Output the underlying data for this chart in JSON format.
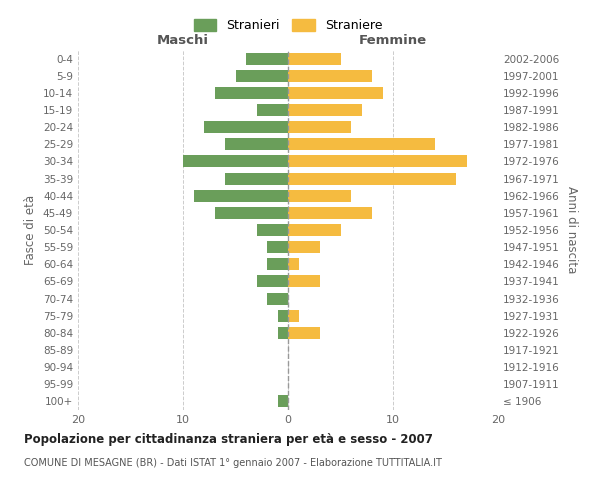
{
  "age_groups": [
    "100+",
    "95-99",
    "90-94",
    "85-89",
    "80-84",
    "75-79",
    "70-74",
    "65-69",
    "60-64",
    "55-59",
    "50-54",
    "45-49",
    "40-44",
    "35-39",
    "30-34",
    "25-29",
    "20-24",
    "15-19",
    "10-14",
    "5-9",
    "0-4"
  ],
  "birth_years": [
    "≤ 1906",
    "1907-1911",
    "1912-1916",
    "1917-1921",
    "1922-1926",
    "1927-1931",
    "1932-1936",
    "1937-1941",
    "1942-1946",
    "1947-1951",
    "1952-1956",
    "1957-1961",
    "1962-1966",
    "1967-1971",
    "1972-1976",
    "1977-1981",
    "1982-1986",
    "1987-1991",
    "1992-1996",
    "1997-2001",
    "2002-2006"
  ],
  "maschi": [
    1,
    0,
    0,
    0,
    1,
    1,
    2,
    3,
    2,
    2,
    3,
    7,
    9,
    6,
    10,
    6,
    8,
    3,
    7,
    5,
    4
  ],
  "femmine": [
    0,
    0,
    0,
    0,
    3,
    1,
    0,
    3,
    1,
    3,
    5,
    8,
    6,
    16,
    17,
    14,
    6,
    7,
    9,
    8,
    5
  ],
  "color_maschi": "#6a9e5a",
  "color_femmine": "#f5bb40",
  "title": "Popolazione per cittadinanza straniera per età e sesso - 2007",
  "subtitle": "COMUNE DI MESAGNE (BR) - Dati ISTAT 1° gennaio 2007 - Elaborazione TUTTITALIA.IT",
  "xlabel_left": "Maschi",
  "xlabel_right": "Femmine",
  "ylabel_left": "Fasce di età",
  "ylabel_right": "Anni di nascita",
  "legend_maschi": "Stranieri",
  "legend_femmine": "Straniere",
  "xlim": 20,
  "background_color": "#ffffff",
  "grid_color": "#cccccc"
}
